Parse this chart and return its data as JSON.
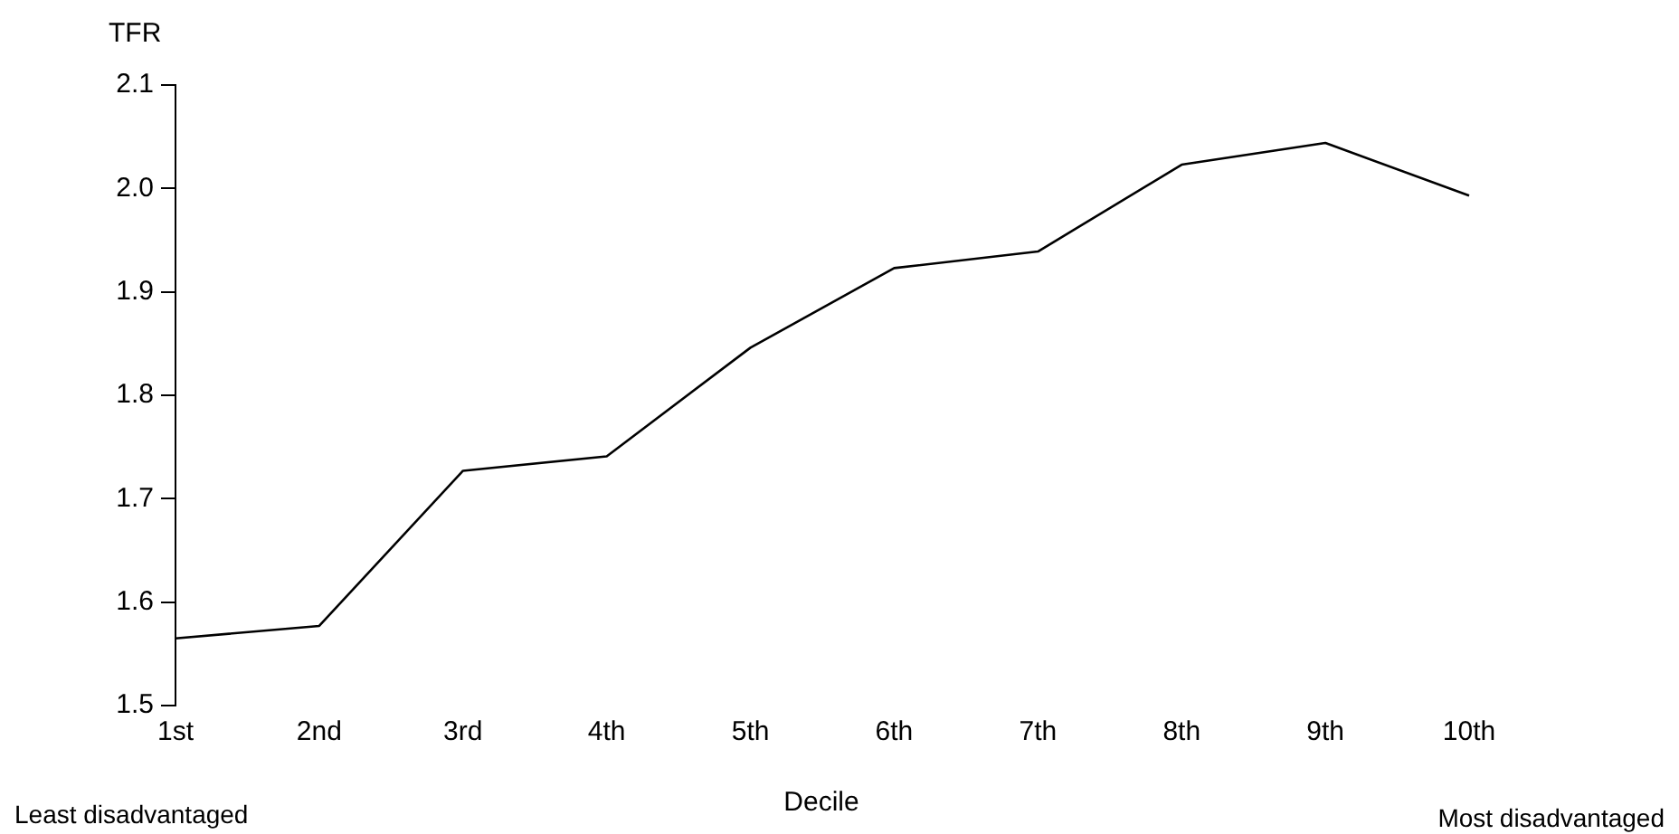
{
  "chart_data": {
    "type": "line",
    "ylabel": "TFR",
    "xlabel": "Decile",
    "categories": [
      "1st",
      "2nd",
      "3rd",
      "4th",
      "5th",
      "6th",
      "7th",
      "8th",
      "9th",
      "10th"
    ],
    "series": [
      {
        "color": "#000000",
        "values": [
          1.565,
          1.577,
          1.727,
          1.741,
          1.846,
          1.923,
          1.939,
          2.023,
          2.044,
          1.993
        ]
      }
    ],
    "ylim": [
      1.5,
      2.1
    ],
    "yticks": [
      1.5,
      1.6,
      1.7,
      1.8,
      1.9,
      {
        "value": 2,
        "label": "2.0"
      },
      2.1
    ],
    "grid": false,
    "legend": false,
    "marker": "none",
    "line_style": "solid",
    "annotations": [
      "Least disadvantaged",
      "Most disadvantaged"
    ]
  }
}
